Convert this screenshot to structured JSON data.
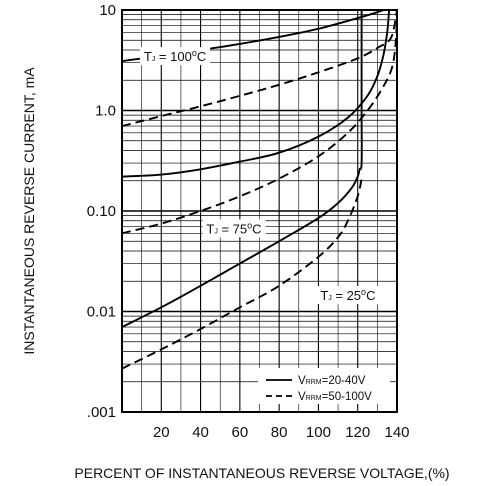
{
  "chart_data": {
    "type": "line",
    "xlabel": "PERCENT OF INSTANTANEOUS REVERSE VOLTAGE,(%)",
    "ylabel": "INSTANTANEOUS REVERSE CURRENT, mA",
    "yscale": "log",
    "xlim": [
      0,
      140
    ],
    "ylim": [
      0.001,
      10
    ],
    "grid": true,
    "x_ticks": [
      20,
      40,
      60,
      80,
      100,
      120,
      140
    ],
    "x_tick_labels": [
      "20",
      "40",
      "60",
      "80",
      "100",
      "120",
      "140"
    ],
    "y_ticks": [
      0.001,
      0.01,
      0.1,
      1,
      10
    ],
    "y_tick_labels": [
      ".001",
      "0.01",
      "0.10",
      "1.0",
      "10"
    ],
    "annotations": [
      {
        "prefix": "T",
        "sub": "J",
        "mid": " = 100",
        "sup": "o",
        "suffix": "C",
        "x": 27,
        "y": 3.1
      },
      {
        "prefix": "T",
        "sub": "J",
        "mid": " = 75",
        "sup": "o",
        "suffix": "C",
        "x": 57,
        "y": 0.06
      },
      {
        "prefix": "T",
        "sub": "J",
        "mid": " = 25",
        "sup": "o",
        "suffix": "C",
        "x": 115,
        "y": 0.013
      }
    ],
    "legend": {
      "position": "bottom-right",
      "entries": [
        {
          "prefix": "V",
          "sub": "RRM",
          "suffix": "=20-40V",
          "style": "solid"
        },
        {
          "prefix": "V",
          "sub": "RRM",
          "suffix": "=50-100V",
          "style": "dashed"
        }
      ]
    },
    "series": [
      {
        "group": "TJ=100C",
        "style": "solid",
        "x": [
          0,
          20,
          40,
          60,
          80,
          100,
          120,
          130,
          136
        ],
        "y": [
          3.1,
          3.5,
          4.0,
          4.6,
          5.4,
          6.5,
          8.3,
          9.5,
          10.5
        ]
      },
      {
        "group": "TJ=100C",
        "style": "dashed",
        "x": [
          0,
          20,
          40,
          60,
          80,
          100,
          120,
          130,
          137,
          140
        ],
        "y": [
          0.7,
          0.88,
          1.1,
          1.4,
          1.8,
          2.4,
          3.3,
          4.2,
          5.3,
          10
        ]
      },
      {
        "group": "TJ=75C",
        "style": "solid",
        "x": [
          0,
          20,
          40,
          60,
          80,
          100,
          115,
          125,
          130,
          133,
          135,
          136
        ],
        "y": [
          0.22,
          0.23,
          0.26,
          0.31,
          0.38,
          0.55,
          0.85,
          1.4,
          2.2,
          3.5,
          6.0,
          10
        ]
      },
      {
        "group": "TJ=75C",
        "style": "dashed",
        "x": [
          0,
          20,
          40,
          60,
          80,
          100,
          115,
          125,
          132,
          137,
          139,
          140
        ],
        "y": [
          0.06,
          0.075,
          0.1,
          0.14,
          0.21,
          0.35,
          0.6,
          1.0,
          1.6,
          2.5,
          4.0,
          8.0
        ]
      },
      {
        "group": "TJ=25C",
        "style": "solid",
        "x": [
          0,
          20,
          40,
          60,
          80,
          100,
          110,
          117,
          120,
          121,
          122,
          122,
          122
        ],
        "y": [
          0.007,
          0.011,
          0.018,
          0.03,
          0.05,
          0.085,
          0.12,
          0.17,
          0.22,
          0.26,
          0.3,
          1.0,
          10
        ]
      },
      {
        "group": "TJ=25C",
        "style": "dashed",
        "x": [
          0,
          20,
          40,
          60,
          80,
          100,
          110,
          115,
          120,
          122
        ],
        "y": [
          0.0027,
          0.0042,
          0.0067,
          0.011,
          0.018,
          0.035,
          0.055,
          0.08,
          0.14,
          0.21
        ]
      }
    ]
  }
}
